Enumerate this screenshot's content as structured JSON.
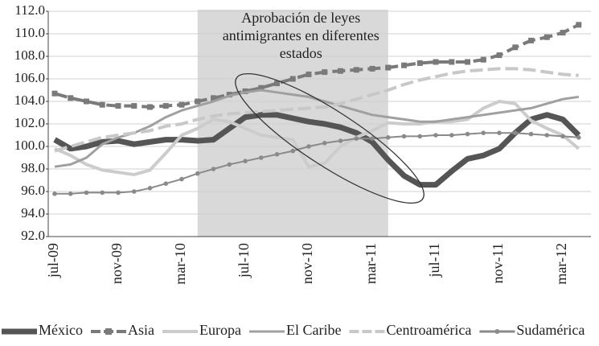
{
  "chart_data": {
    "type": "line",
    "annotation": [
      "Aprobación de leyes",
      "antimigrantes en diferentes",
      "estados"
    ],
    "highlight_range": [
      9,
      21
    ],
    "categories": [
      "jul-09",
      null,
      null,
      null,
      "nov-09",
      null,
      null,
      null,
      "mar-10",
      null,
      null,
      null,
      "jul-10",
      null,
      null,
      null,
      "nov-10",
      null,
      null,
      null,
      "mar-11",
      null,
      null,
      null,
      "jul-11",
      null,
      null,
      null,
      "nov-11",
      null,
      null,
      null,
      "mar-12",
      null
    ],
    "ylim": [
      92,
      112
    ],
    "yticks": [
      {
        "value": 92,
        "label": "92.0"
      },
      {
        "value": 94,
        "label": "94.0"
      },
      {
        "value": 96,
        "label": "96.0"
      },
      {
        "value": 98,
        "label": "98.0"
      },
      {
        "value": 100,
        "label": "100.0"
      },
      {
        "value": 102,
        "label": "102.0"
      },
      {
        "value": 104,
        "label": "104.0"
      },
      {
        "value": 106,
        "label": "106.0"
      },
      {
        "value": 108,
        "label": "108.0"
      },
      {
        "value": 110,
        "label": "110.0"
      },
      {
        "value": 112,
        "label": "112.0"
      }
    ],
    "grid": true,
    "legend": "bottom",
    "series": [
      {
        "name": "México",
        "color": "#555555",
        "width": 7,
        "dash": false,
        "marker": "none",
        "values": [
          100.6,
          99.8,
          100.0,
          100.4,
          100.5,
          100.2,
          100.4,
          100.6,
          100.6,
          100.5,
          100.6,
          101.6,
          102.6,
          102.8,
          102.8,
          102.5,
          102.2,
          102.0,
          101.7,
          101.2,
          100.4,
          98.8,
          97.4,
          96.6,
          96.6,
          97.8,
          98.9,
          99.2,
          99.8,
          101.2,
          102.4,
          102.8,
          102.4,
          101.0
        ]
      },
      {
        "name": "Asia",
        "color": "#7a7a7a",
        "width": 4,
        "dash": true,
        "marker": "square",
        "values": [
          104.7,
          104.3,
          104.0,
          103.7,
          103.6,
          103.6,
          103.5,
          103.6,
          103.7,
          104.0,
          104.3,
          104.6,
          104.9,
          105.2,
          105.6,
          106.0,
          106.4,
          106.6,
          106.7,
          106.8,
          106.9,
          107.0,
          107.2,
          107.4,
          107.5,
          107.5,
          107.5,
          107.7,
          108.1,
          108.8,
          109.4,
          109.7,
          110.1,
          110.8
        ]
      },
      {
        "name": "Europa",
        "color": "#cccccc",
        "width": 4,
        "dash": false,
        "marker": "none",
        "values": [
          99.8,
          99.2,
          98.4,
          97.9,
          97.7,
          97.5,
          97.9,
          99.4,
          101.0,
          101.6,
          102.4,
          102.2,
          101.6,
          101.0,
          100.8,
          100.6,
          98.2,
          98.5,
          100.0,
          100.8,
          101.4,
          102.1,
          102.0,
          102.0,
          102.2,
          102.2,
          102.4,
          103.4,
          104.0,
          103.8,
          102.3,
          101.6,
          101.0,
          99.8
        ]
      },
      {
        "name": "El Caribe",
        "color": "#a0a0a0",
        "width": 3,
        "dash": false,
        "marker": "none",
        "values": [
          98.2,
          98.4,
          99.0,
          100.2,
          100.8,
          101.2,
          101.8,
          102.6,
          103.2,
          103.6,
          104.0,
          104.5,
          104.8,
          105.0,
          104.8,
          104.6,
          104.4,
          104.0,
          103.6,
          103.2,
          102.8,
          102.6,
          102.4,
          102.2,
          102.2,
          102.4,
          102.6,
          102.8,
          103.0,
          103.2,
          103.4,
          103.8,
          104.2,
          104.4
        ]
      },
      {
        "name": "Centroamérica",
        "color": "#c8c8c8",
        "width": 4,
        "dash": true,
        "marker": "none",
        "values": [
          99.6,
          100.0,
          100.4,
          100.8,
          101.0,
          101.2,
          101.4,
          101.8,
          102.0,
          102.4,
          102.7,
          102.9,
          103.0,
          103.1,
          103.2,
          103.3,
          103.4,
          103.5,
          103.8,
          104.2,
          104.6,
          105.0,
          105.5,
          105.9,
          106.2,
          106.5,
          106.7,
          106.8,
          106.9,
          106.9,
          106.8,
          106.6,
          106.4,
          106.3
        ]
      },
      {
        "name": "Sudamérica",
        "color": "#8a8a8a",
        "width": 2,
        "dash": false,
        "marker": "circle",
        "values": [
          95.8,
          95.8,
          95.9,
          95.9,
          95.9,
          96.0,
          96.3,
          96.7,
          97.1,
          97.6,
          98.0,
          98.4,
          98.7,
          99.0,
          99.3,
          99.6,
          100.0,
          100.3,
          100.5,
          100.7,
          100.7,
          100.8,
          100.9,
          100.9,
          101.0,
          101.0,
          101.1,
          101.2,
          101.2,
          101.2,
          101.1,
          101.0,
          100.9,
          100.8
        ]
      }
    ]
  }
}
